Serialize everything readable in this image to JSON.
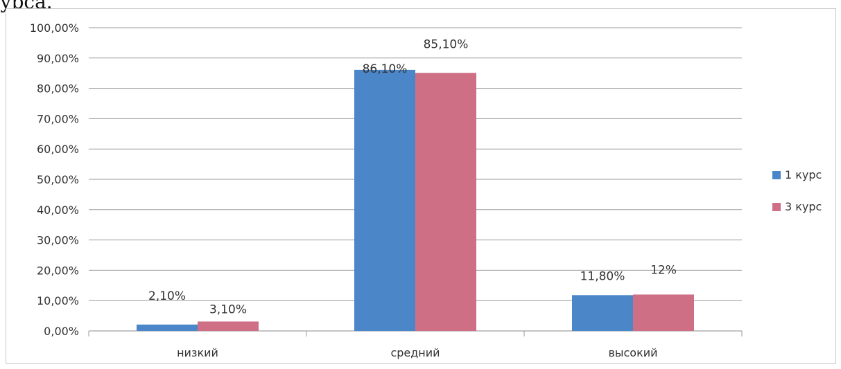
{
  "page": {
    "top_text": "урса."
  },
  "chart_data": {
    "type": "bar",
    "categories": [
      "низкий",
      "средний",
      "высокий"
    ],
    "series": [
      {
        "name": "1 курс",
        "values": [
          2.1,
          86.1,
          11.8
        ],
        "labels": [
          "2,10%",
          "86,10%",
          "11,80%"
        ],
        "color": "#4a86c8"
      },
      {
        "name": "3 курс",
        "values": [
          3.1,
          85.1,
          12.0
        ],
        "labels": [
          "3,10%",
          "85,10%",
          "12%"
        ],
        "color": "#cf6f86"
      }
    ],
    "ylim": [
      0,
      100
    ],
    "yticks": [
      "0,00%",
      "10,00%",
      "20,00%",
      "30,00%",
      "40,00%",
      "50,00%",
      "60,00%",
      "70,00%",
      "80,00%",
      "90,00%",
      "100,00%"
    ],
    "grid": true,
    "legend": "right"
  }
}
